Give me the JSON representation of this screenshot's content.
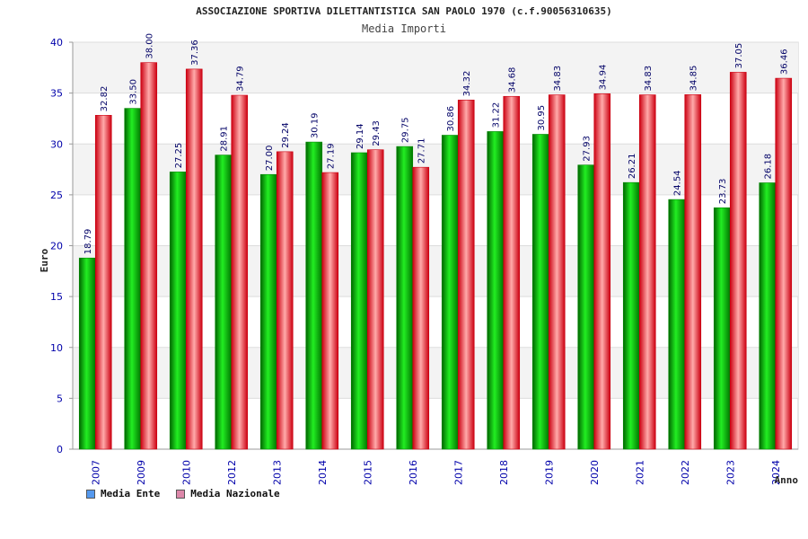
{
  "chart_data": {
    "type": "bar",
    "title": "ASSOCIAZIONE SPORTIVA DILETTANTISTICA SAN PAOLO 1970 (c.f.90056310635)",
    "subtitle": "Media Importi",
    "xlabel": "Anno",
    "ylabel": "Euro",
    "ylim": [
      0,
      40
    ],
    "yticks": [
      "0",
      "5",
      "10",
      "15",
      "20",
      "25",
      "30",
      "35",
      "40"
    ],
    "grid": true,
    "legend_position": "bottom-left",
    "categories": [
      "2007",
      "2009",
      "2010",
      "2012",
      "2013",
      "2014",
      "2015",
      "2016",
      "2017",
      "2018",
      "2019",
      "2020",
      "2021",
      "2022",
      "2023",
      "2024"
    ],
    "series": [
      {
        "name": "Media Ente",
        "color": "#00cc00",
        "legend_color": "#5599ee",
        "values": [
          18.79,
          33.5,
          27.25,
          28.91,
          27.0,
          30.19,
          29.14,
          29.75,
          30.86,
          31.22,
          30.95,
          27.93,
          26.21,
          24.54,
          23.73,
          26.18
        ],
        "labels": [
          "18.79",
          "33.50",
          "27.25",
          "28.91",
          "27.00",
          "30.19",
          "29.14",
          "29.75",
          "30.86",
          "31.22",
          "30.95",
          "27.93",
          "26.21",
          "24.54",
          "23.73",
          "26.18"
        ]
      },
      {
        "name": "Media Nazionale",
        "color": "#ee1122",
        "legend_color": "#dd88aa",
        "values": [
          32.82,
          38.0,
          37.36,
          34.79,
          29.24,
          27.19,
          29.43,
          27.71,
          34.32,
          34.68,
          34.83,
          34.94,
          34.83,
          34.85,
          37.05,
          36.46
        ],
        "labels": [
          "32.82",
          "38.00",
          "37.36",
          "34.79",
          "29.24",
          "27.19",
          "29.43",
          "27.71",
          "34.32",
          "34.68",
          "34.83",
          "34.94",
          "34.83",
          "34.85",
          "37.05",
          "36.46"
        ]
      }
    ]
  }
}
